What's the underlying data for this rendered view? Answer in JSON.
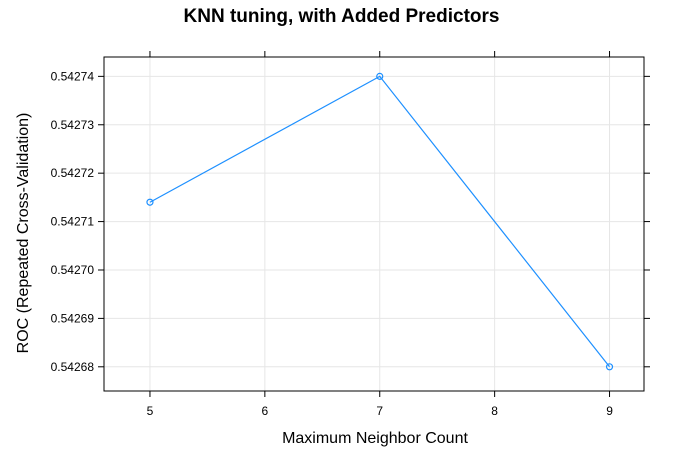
{
  "chart_data": {
    "type": "line",
    "title": "KNN tuning, with Added Predictors",
    "xlabel": "Maximum Neighbor Count",
    "ylabel": "ROC (Repeated Cross-Validation)",
    "x": [
      5,
      7,
      9
    ],
    "y": [
      0.542714,
      0.54274,
      0.54268
    ],
    "xlim": [
      4.6,
      9.3
    ],
    "ylim": [
      0.542675,
      0.542744
    ],
    "xticks": [
      5,
      6,
      7,
      8,
      9
    ],
    "xtick_labels": [
      "5",
      "6",
      "7",
      "8",
      "9"
    ],
    "yticks": [
      0.54268,
      0.54269,
      0.5427,
      0.54271,
      0.54272,
      0.54273,
      0.54274
    ],
    "ytick_labels": [
      "0.54268",
      "0.54269",
      "0.54270",
      "0.54271",
      "0.54272",
      "0.54273",
      "0.54274"
    ],
    "grid": true,
    "line_color": "#1e90ff",
    "grid_color": "#e6e6e6"
  }
}
